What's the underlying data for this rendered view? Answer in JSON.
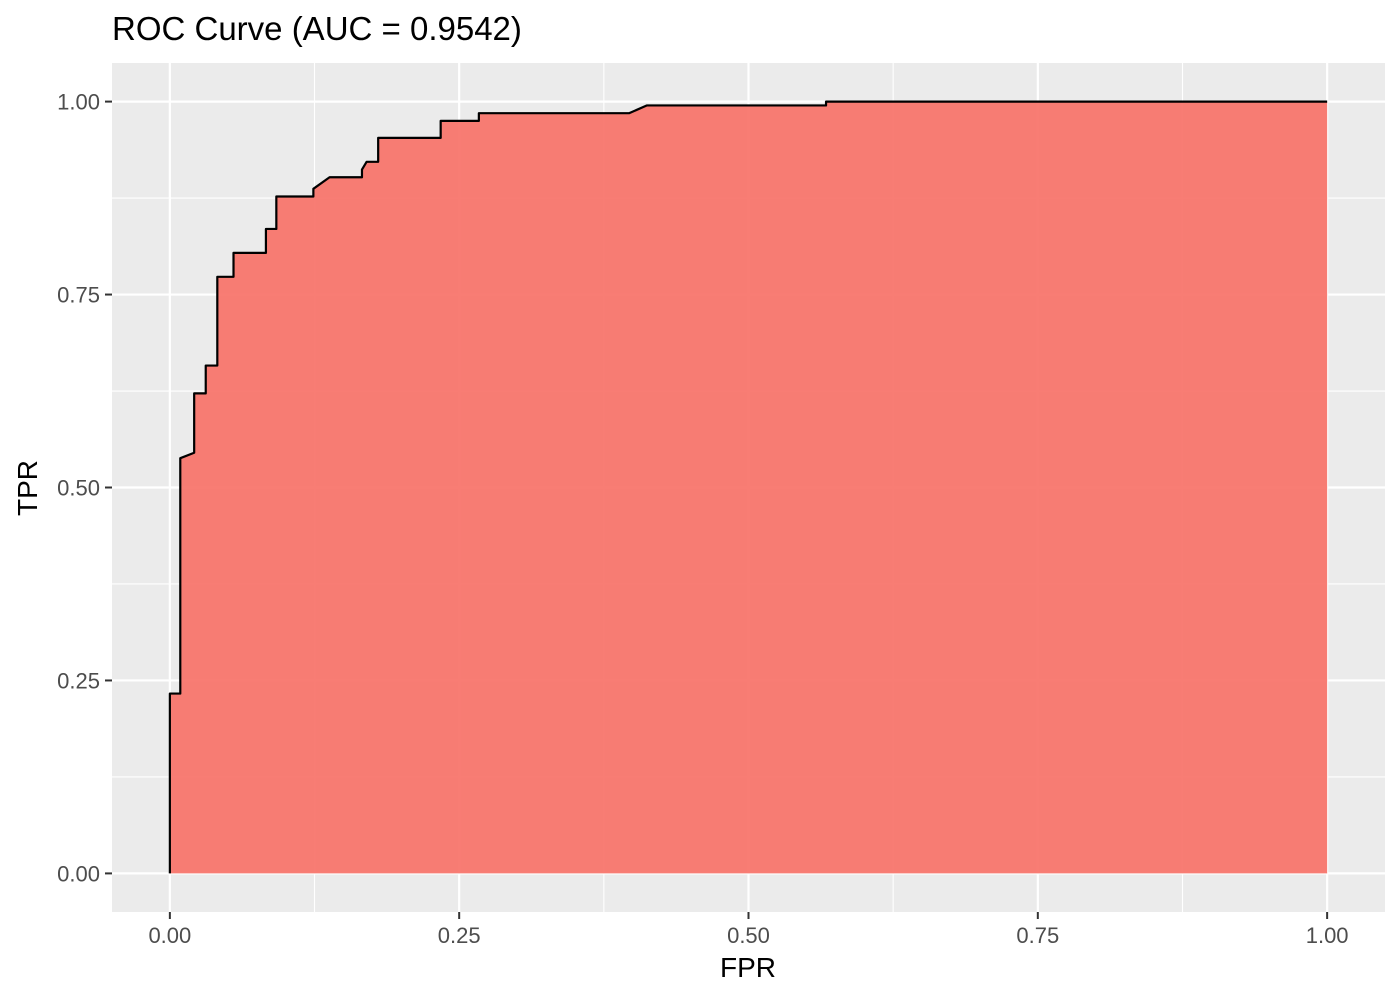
{
  "chart_data": {
    "type": "area",
    "title": "ROC Curve (AUC = 0.9542)",
    "xlabel": "FPR",
    "ylabel": "TPR",
    "xlim": [
      -0.05,
      1.05
    ],
    "ylim": [
      -0.05,
      1.05
    ],
    "x_ticks": [
      0,
      0.25,
      0.5,
      0.75,
      1
    ],
    "y_ticks": [
      0,
      0.25,
      0.5,
      0.75,
      1
    ],
    "x_tick_labels": [
      "0.00",
      "0.25",
      "0.50",
      "0.75",
      "1.00"
    ],
    "y_tick_labels": [
      "0.00",
      "0.25",
      "0.50",
      "0.75",
      "1.00"
    ],
    "grid": true,
    "legend": "none",
    "colors": {
      "fill": "#F8766D",
      "line": "#000000",
      "panel": "#EBEBEB",
      "grid": "#FFFFFF"
    },
    "series": [
      {
        "x": [
          0,
          0,
          0.009,
          0.009,
          0.021,
          0.021,
          0.031,
          0.031,
          0.041,
          0.041,
          0.055,
          0.055,
          0.083,
          0.083,
          0.092,
          0.092,
          0.124,
          0.124,
          0.138,
          0.166,
          0.166,
          0.17,
          0.18,
          0.18,
          0.234,
          0.234,
          0.267,
          0.267,
          0.397,
          0.412,
          0.567,
          0.567,
          1
        ],
        "y": [
          0,
          0.233,
          0.233,
          0.538,
          0.545,
          0.622,
          0.622,
          0.658,
          0.658,
          0.773,
          0.773,
          0.804,
          0.804,
          0.835,
          0.835,
          0.877,
          0.877,
          0.887,
          0.902,
          0.902,
          0.912,
          0.922,
          0.922,
          0.953,
          0.953,
          0.975,
          0.975,
          0.985,
          0.985,
          0.995,
          0.995,
          1,
          1
        ]
      }
    ]
  }
}
